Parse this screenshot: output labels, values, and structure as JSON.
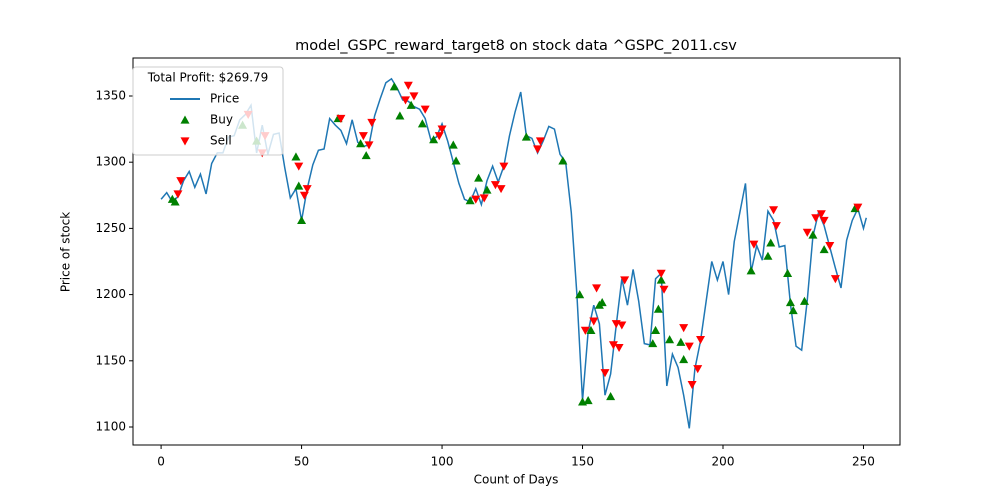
{
  "chart_data": {
    "type": "line",
    "title": "model_GSPC_reward_target8 on stock data ^GSPC_2011.csv",
    "x_label": "Count of Days",
    "y_label": "Price of stock",
    "legend_title": "Total Profit: $269.79",
    "legend_position": "upper left",
    "xlim": [
      -10,
      263
    ],
    "ylim": [
      1086.4,
      1378.7
    ],
    "xticks": [
      0,
      50,
      100,
      150,
      200,
      250
    ],
    "yticks": [
      1100,
      1150,
      1200,
      1250,
      1300,
      1350
    ],
    "series": [
      {
        "name": "Price",
        "type": "line",
        "color": "#1f77b4",
        "x": [
          0,
          2,
          4,
          6,
          8,
          10,
          12,
          14,
          16,
          18,
          20,
          22,
          24,
          26,
          28,
          30,
          32,
          34,
          36,
          38,
          40,
          42,
          44,
          46,
          48,
          50,
          52,
          54,
          56,
          58,
          60,
          62,
          64,
          66,
          68,
          70,
          72,
          74,
          76,
          78,
          80,
          82,
          84,
          86,
          88,
          90,
          92,
          94,
          96,
          98,
          100,
          102,
          104,
          106,
          108,
          110,
          112,
          114,
          116,
          118,
          120,
          122,
          124,
          126,
          128,
          130,
          132,
          134,
          136,
          138,
          140,
          142,
          144,
          146,
          148,
          150,
          152,
          154,
          156,
          158,
          160,
          162,
          164,
          166,
          168,
          170,
          172,
          174,
          176,
          178,
          180,
          182,
          184,
          186,
          188,
          190,
          192,
          194,
          196,
          198,
          200,
          202,
          204,
          206,
          208,
          210,
          212,
          214,
          216,
          218,
          220,
          222,
          224,
          226,
          228,
          230,
          232,
          234,
          236,
          238,
          240,
          242,
          244,
          246,
          248,
          250,
          251
        ],
        "values": [
          1272,
          1277,
          1270,
          1274,
          1286,
          1293,
          1281,
          1291,
          1276,
          1299,
          1307,
          1307,
          1319,
          1320,
          1332,
          1336,
          1343,
          1307,
          1328,
          1306,
          1321,
          1322,
          1296,
          1273,
          1280,
          1256,
          1280,
          1298,
          1309,
          1310,
          1333,
          1328,
          1324,
          1314,
          1332,
          1315,
          1312,
          1313,
          1335,
          1348,
          1360,
          1363,
          1356,
          1347,
          1346,
          1342,
          1340,
          1333,
          1317,
          1319,
          1329,
          1316,
          1300,
          1284,
          1272,
          1270,
          1280,
          1268,
          1286,
          1297,
          1285,
          1297,
          1320,
          1338,
          1353,
          1320,
          1318,
          1307,
          1316,
          1327,
          1325,
          1306,
          1300,
          1262,
          1200,
          1120,
          1172,
          1192,
          1178,
          1124,
          1140,
          1177,
          1212,
          1192,
          1219,
          1195,
          1163,
          1162,
          1212,
          1216,
          1131,
          1155,
          1145,
          1124,
          1099,
          1144,
          1165,
          1195,
          1225,
          1211,
          1225,
          1200,
          1240,
          1262,
          1284,
          1217,
          1237,
          1226,
          1263,
          1256,
          1236,
          1237,
          1193,
          1161,
          1158,
          1196,
          1244,
          1262,
          1252,
          1236,
          1220,
          1205,
          1241,
          1256,
          1265,
          1250,
          1258
        ]
      },
      {
        "name": "Buy",
        "type": "scatter",
        "marker": "^",
        "color": "green",
        "x": [
          4,
          5,
          29,
          34,
          48,
          49,
          50,
          63,
          71,
          73,
          83,
          85,
          89,
          93,
          97,
          104,
          105,
          110,
          113,
          116,
          130,
          143,
          149,
          150,
          152,
          153,
          156,
          157,
          160,
          175,
          176,
          177,
          178,
          181,
          185,
          186,
          210,
          216,
          217,
          223,
          224,
          225,
          229,
          232,
          236,
          247
        ],
        "values": [
          1272,
          1270,
          1328,
          1316,
          1304,
          1282,
          1256,
          1333,
          1314,
          1305,
          1357,
          1335,
          1343,
          1329,
          1317,
          1313,
          1301,
          1271,
          1288,
          1279,
          1319,
          1301,
          1200,
          1119,
          1120,
          1173,
          1192,
          1194,
          1123,
          1163,
          1173,
          1189,
          1211,
          1166,
          1164,
          1151,
          1218,
          1229,
          1239,
          1216,
          1194,
          1188,
          1195,
          1245,
          1234,
          1265
        ]
      },
      {
        "name": "Sell",
        "type": "scatter",
        "marker": "v",
        "color": "red",
        "x": [
          6,
          7,
          31,
          36,
          37,
          49,
          51,
          52,
          64,
          72,
          74,
          75,
          87,
          88,
          90,
          94,
          99,
          100,
          112,
          115,
          119,
          121,
          122,
          134,
          135,
          151,
          154,
          155,
          158,
          161,
          162,
          163,
          164,
          165,
          178,
          179,
          186,
          188,
          189,
          191,
          192,
          211,
          218,
          219,
          230,
          233,
          235,
          236,
          238,
          240,
          248
        ],
        "values": [
          1276,
          1286,
          1336,
          1307,
          1320,
          1297,
          1275,
          1280,
          1333,
          1320,
          1313,
          1330,
          1347,
          1358,
          1350,
          1340,
          1320,
          1325,
          1272,
          1273,
          1283,
          1280,
          1297,
          1310,
          1316,
          1173,
          1180,
          1205,
          1141,
          1162,
          1178,
          1160,
          1177,
          1211,
          1216,
          1204,
          1175,
          1161,
          1132,
          1144,
          1166,
          1238,
          1264,
          1252,
          1247,
          1258,
          1261,
          1256,
          1237,
          1212,
          1266
        ]
      }
    ]
  }
}
